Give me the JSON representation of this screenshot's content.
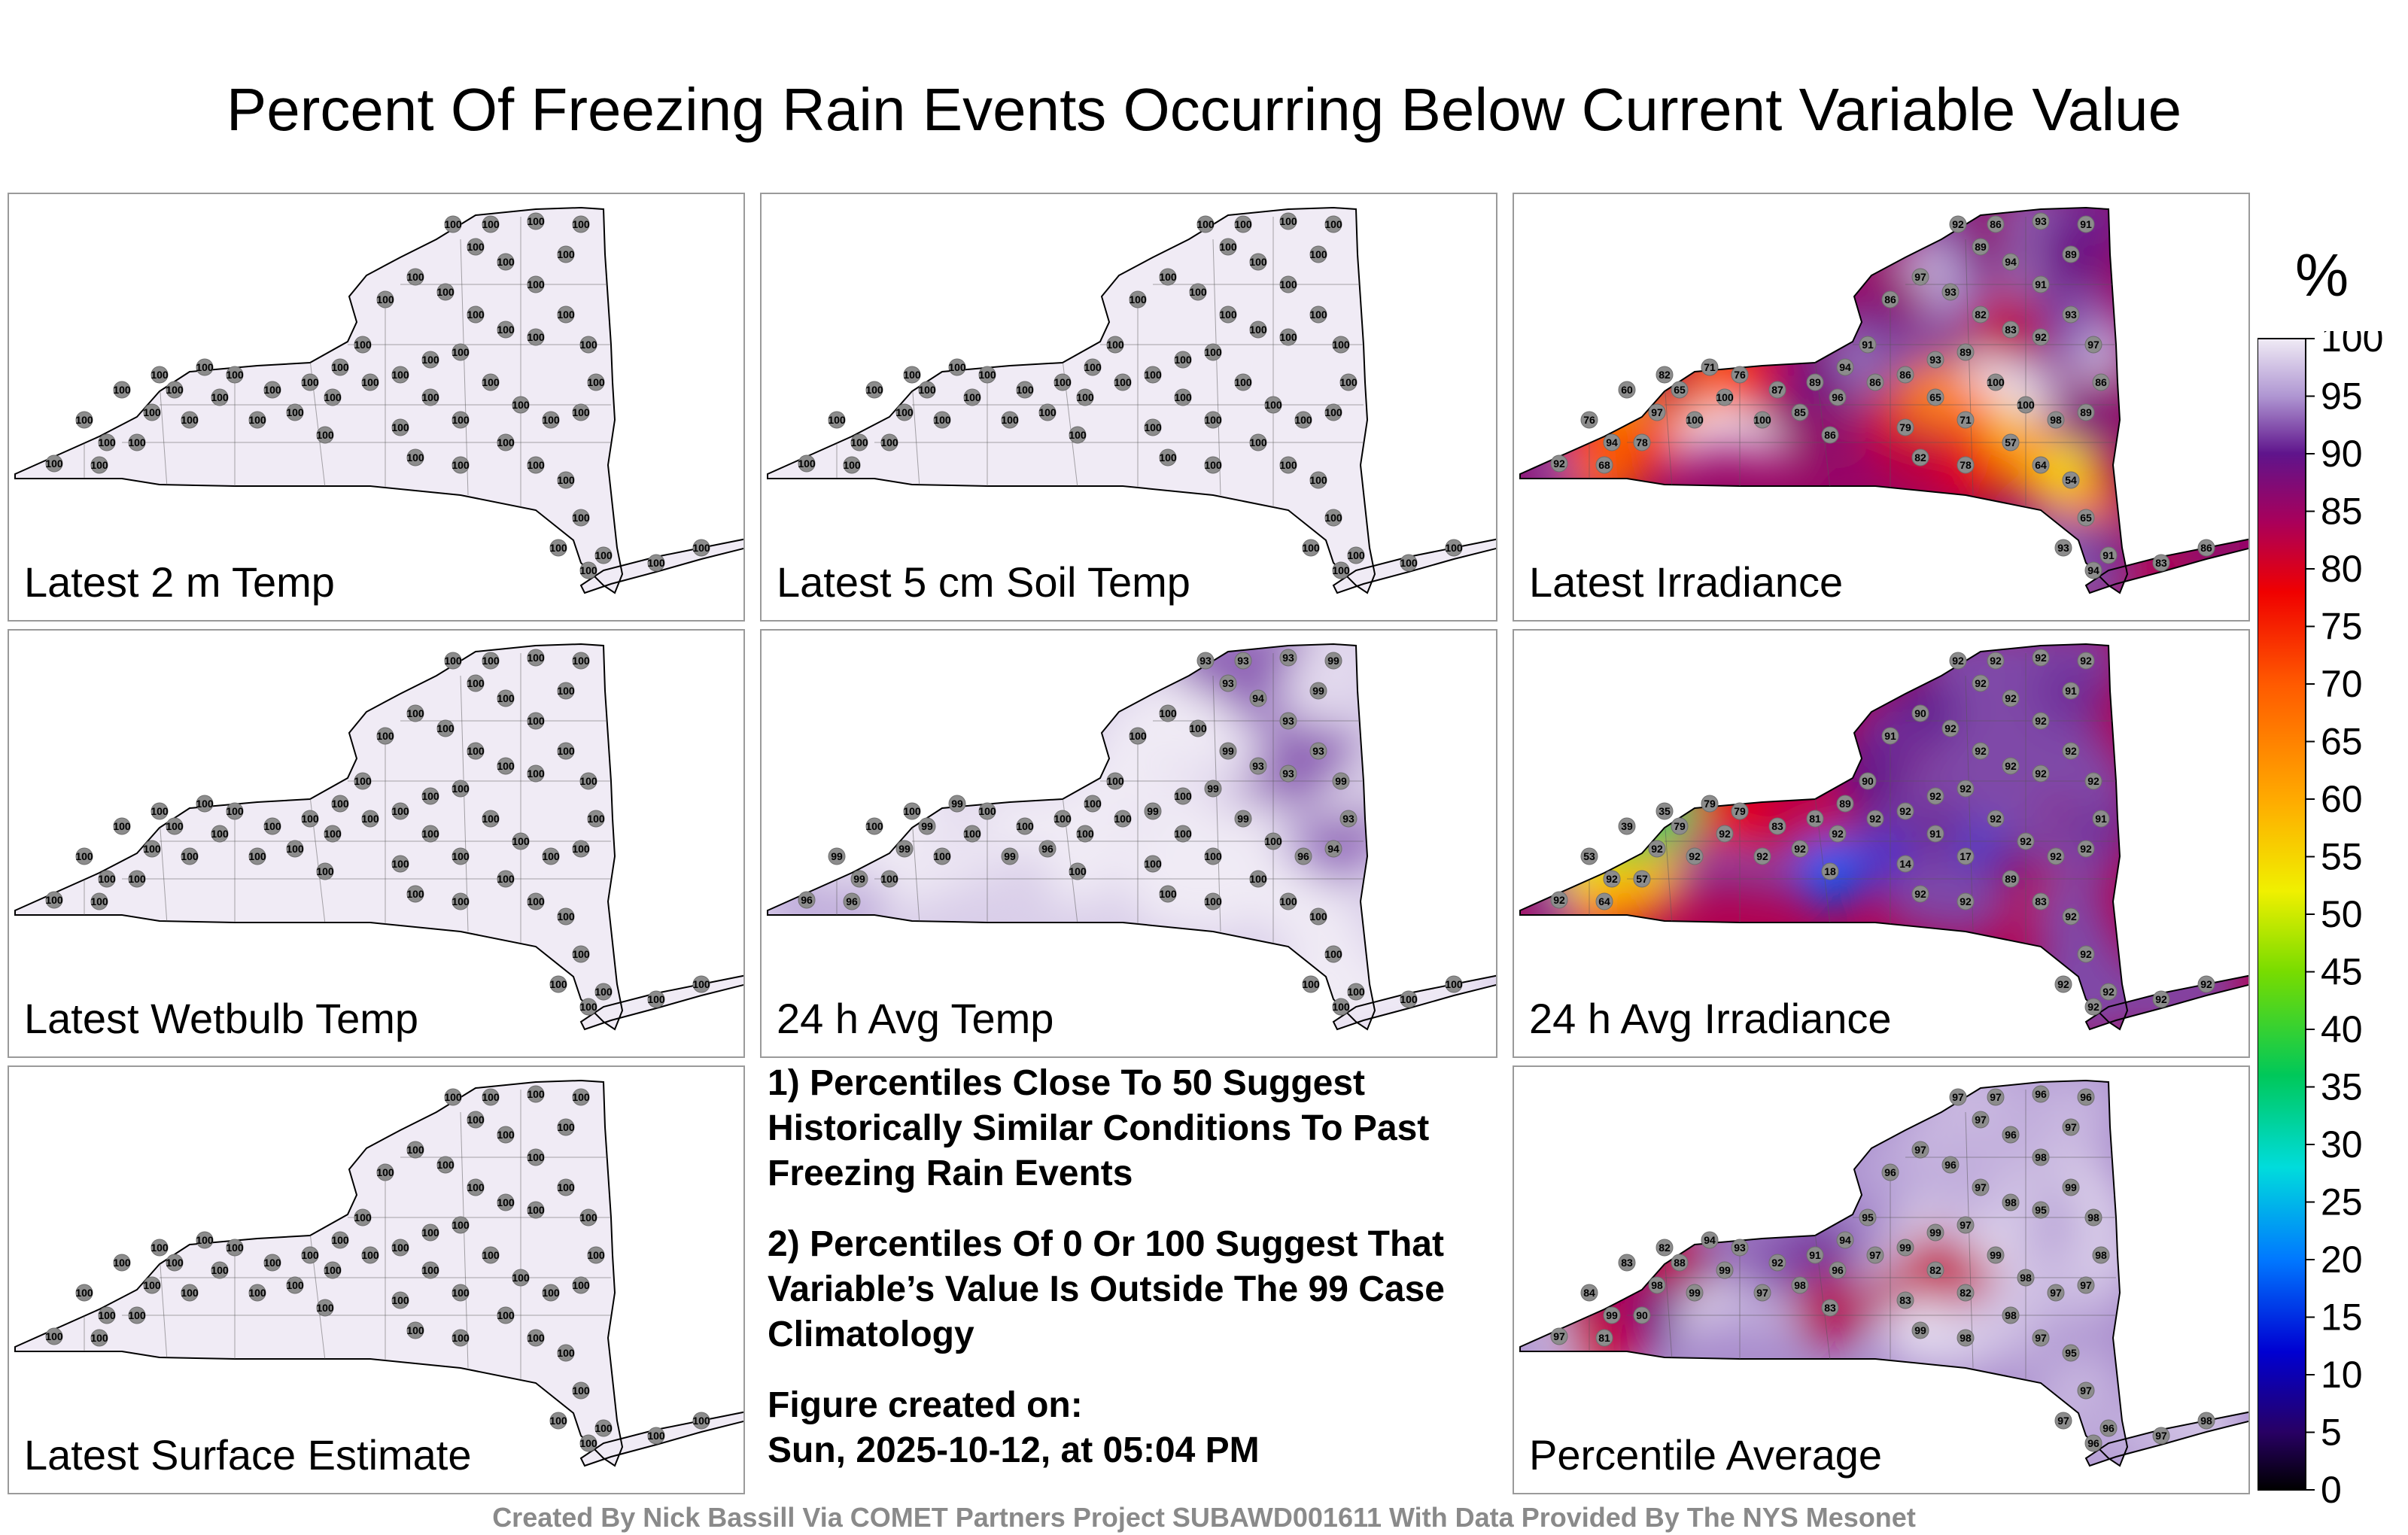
{
  "title": "Percent Of Freezing Rain Events Occurring Below Current Variable Value",
  "panels": [
    {
      "label": "Latest 2 m Temp",
      "values": [
        100,
        100,
        100,
        100,
        100,
        100,
        100,
        100,
        100,
        100,
        100,
        100,
        100,
        100,
        100,
        100,
        100,
        100,
        100,
        100,
        100,
        100,
        100,
        100,
        100,
        100,
        100,
        100,
        100,
        100,
        100,
        100,
        100,
        100,
        100,
        100,
        100,
        100,
        100,
        100,
        100,
        100,
        100,
        100,
        100,
        100,
        100,
        100,
        100,
        100,
        100,
        100,
        100,
        100,
        100,
        100,
        100,
        100,
        100,
        100
      ]
    },
    {
      "label": "Latest 5 cm Soil Temp",
      "values": [
        100,
        100,
        100,
        100,
        100,
        100,
        100,
        100,
        100,
        100,
        100,
        100,
        100,
        100,
        100,
        100,
        100,
        100,
        100,
        100,
        100,
        100,
        100,
        100,
        100,
        100,
        100,
        100,
        100,
        100,
        100,
        100,
        100,
        100,
        100,
        100,
        100,
        100,
        100,
        100,
        100,
        100,
        100,
        100,
        100,
        100,
        100,
        100,
        100,
        100,
        100,
        100,
        100,
        100,
        100,
        100,
        100,
        100,
        100,
        100
      ]
    },
    {
      "label": "Latest Irradiance",
      "values": [
        92,
        94,
        97,
        100,
        100,
        100,
        85,
        96,
        86,
        86,
        93,
        89,
        100,
        100,
        98,
        89,
        86,
        97,
        93,
        91,
        94,
        89,
        92,
        86,
        93,
        91,
        89,
        92,
        83,
        82,
        93,
        97,
        86,
        91,
        94,
        89,
        87,
        76,
        71,
        65,
        78,
        68,
        76,
        60,
        82,
        86,
        79,
        71,
        65,
        57,
        64,
        54,
        65,
        93,
        94,
        91,
        83,
        86,
        78,
        82
      ]
    },
    {
      "label": "Latest Wetbulb Temp",
      "values": [
        100,
        100,
        100,
        100,
        100,
        100,
        100,
        100,
        100,
        100,
        100,
        100,
        100,
        100,
        100,
        100,
        100,
        100,
        100,
        100,
        100,
        100,
        100,
        100,
        100,
        100,
        100,
        100,
        100,
        100,
        100,
        100,
        100,
        100,
        100,
        100,
        100,
        100,
        100,
        100,
        100,
        100,
        100,
        100,
        100,
        100,
        100,
        100,
        100,
        100,
        100,
        100,
        100,
        100,
        100,
        100,
        100,
        100,
        100,
        100
      ]
    },
    {
      "label": "24 h Avg Temp",
      "values": [
        96,
        99,
        99,
        100,
        100,
        99,
        96,
        100,
        100,
        99,
        100,
        99,
        99,
        100,
        96,
        94,
        93,
        99,
        93,
        93,
        94,
        93,
        93,
        93,
        93,
        99,
        99,
        93,
        93,
        99,
        100,
        100,
        100,
        100,
        100,
        100,
        100,
        100,
        99,
        99,
        100,
        96,
        99,
        100,
        100,
        100,
        100,
        100,
        100,
        100,
        100,
        100,
        100,
        100,
        100,
        100,
        100,
        100,
        100,
        100
      ]
    },
    {
      "label": "24 h Avg Irradiance",
      "values": [
        92,
        92,
        92,
        92,
        92,
        92,
        92,
        92,
        92,
        92,
        92,
        92,
        92,
        92,
        92,
        92,
        91,
        92,
        92,
        92,
        92,
        92,
        92,
        92,
        92,
        92,
        91,
        92,
        92,
        92,
        92,
        90,
        91,
        90,
        89,
        81,
        83,
        79,
        79,
        79,
        57,
        64,
        53,
        39,
        35,
        18,
        14,
        17,
        91,
        89,
        83,
        92,
        92,
        92,
        92,
        92,
        92,
        92,
        92,
        92
      ]
    },
    {
      "label": "Latest Surface Estimate",
      "values": [
        100,
        100,
        100,
        100,
        100,
        100,
        100,
        100,
        100,
        100,
        100,
        100,
        100,
        100,
        100,
        100,
        100,
        100,
        100,
        100,
        100,
        100,
        100,
        100,
        100,
        100,
        100,
        100,
        100,
        100,
        100,
        100,
        100,
        100,
        100,
        100,
        100,
        100,
        100,
        100,
        100,
        100,
        100,
        100,
        100,
        100,
        100,
        100,
        100,
        100,
        100,
        100,
        100,
        100,
        100,
        100,
        100,
        100,
        100,
        100
      ]
    },
    {
      "label": "Percentile Average",
      "values": [
        97,
        99,
        98,
        99,
        99,
        97,
        98,
        96,
        97,
        99,
        99,
        97,
        99,
        98,
        97,
        97,
        98,
        98,
        99,
        98,
        96,
        97,
        97,
        97,
        96,
        96,
        97,
        95,
        98,
        97,
        96,
        97,
        96,
        95,
        94,
        91,
        92,
        93,
        94,
        88,
        90,
        81,
        84,
        83,
        82,
        83,
        83,
        82,
        82,
        98,
        97,
        95,
        97,
        97,
        96,
        96,
        97,
        98,
        98,
        99
      ]
    }
  ],
  "notes": [
    "1) Percentiles Close To 50 Suggest Historically Similar Conditions To Past Freezing Rain Events",
    "2) Percentiles Of 0 Or 100 Suggest That Variable’s Value Is Outside The 99 Case Climatology",
    "Figure created on:",
    "Sun, 2025-10-12, at 05:04 PM"
  ],
  "colorbar": {
    "unit": "%",
    "ticks": [
      "100",
      "95",
      "90",
      "85",
      "80",
      "75",
      "70",
      "65",
      "60",
      "55",
      "50",
      "45",
      "40",
      "35",
      "30",
      "25",
      "20",
      "15",
      "10",
      "5",
      "0"
    ]
  },
  "credit": "Created By Nick Bassill Via COMET Partners Project SUBAWD001611 With Data Provided By The NYS Mesonet",
  "chart_data": {
    "type": "heatmap",
    "title": "Percent Of Freezing Rain Events Occurring Below Current Variable Value",
    "subplots": [
      "Latest 2 m Temp",
      "Latest 5 cm Soil Temp",
      "Latest Irradiance",
      "Latest Wetbulb Temp",
      "24 h Avg Temp",
      "24 h Avg Irradiance",
      "Latest Surface Estimate",
      "Percentile Average"
    ],
    "colorbar_range": [
      0,
      100
    ],
    "unit": "%"
  }
}
